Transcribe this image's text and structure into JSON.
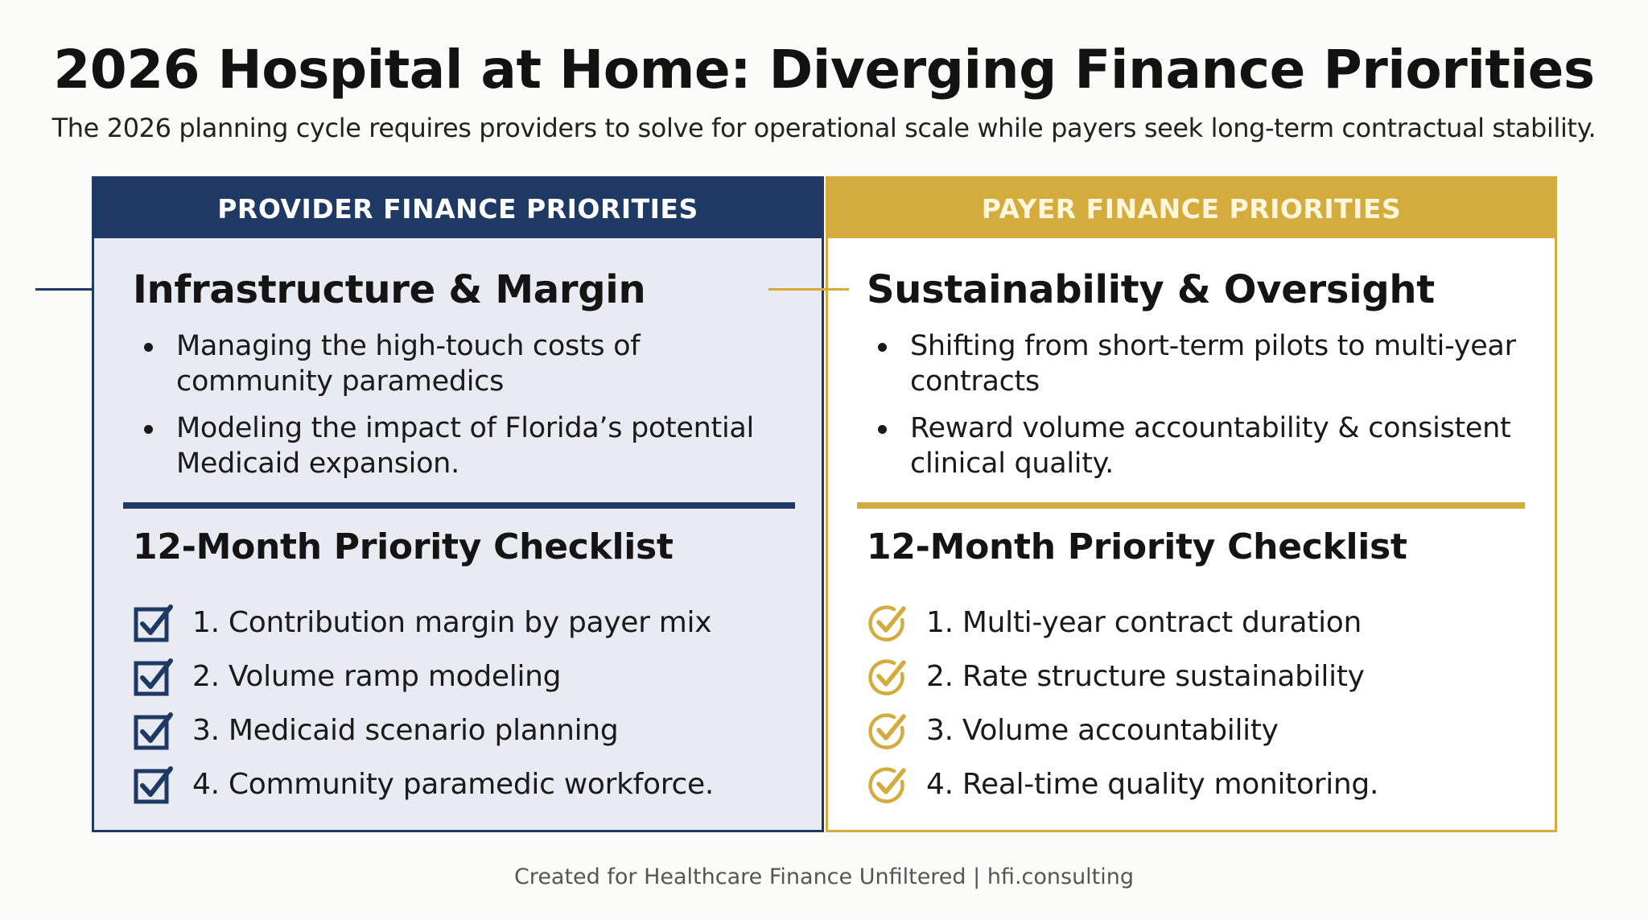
{
  "title": "2026 Hospital at Home: Diverging Finance Priorities",
  "subtitle": "The 2026 planning cycle requires providers to solve for operational scale while payers seek long-term contractual stability.",
  "provider": {
    "header": "PROVIDER FINANCE PRIORITIES",
    "section_title": "Infrastructure & Margin",
    "bullets": [
      "Managing the high-touch costs of community paramedics",
      "Modeling the impact of Florida’s potential Medicaid expansion."
    ],
    "checklist_title": "12-Month Priority Checklist",
    "checklist": [
      "1. Contribution margin by payer mix",
      "2. Volume ramp modeling",
      "3. Medicaid scenario planning",
      "4. Community paramedic workforce."
    ],
    "color": "#1e3a64",
    "icon": "checkbox-checked-icon"
  },
  "payer": {
    "header": "PAYER FINANCE PRIORITIES",
    "section_title": "Sustainability & Oversight",
    "bullets": [
      "Shifting from short-term pilots to multi-year contracts",
      "Reward volume accountability & consistent clinical quality."
    ],
    "checklist_title": "12-Month Priority Checklist",
    "checklist": [
      "1. Multi-year contract duration",
      "2. Rate structure sustainability",
      "3. Volume accountability",
      "4. Real-time quality monitoring."
    ],
    "color": "#d4ac3d",
    "icon": "circle-check-icon"
  },
  "footer": "Created for Healthcare Finance Unfiltered | hfi.consulting"
}
